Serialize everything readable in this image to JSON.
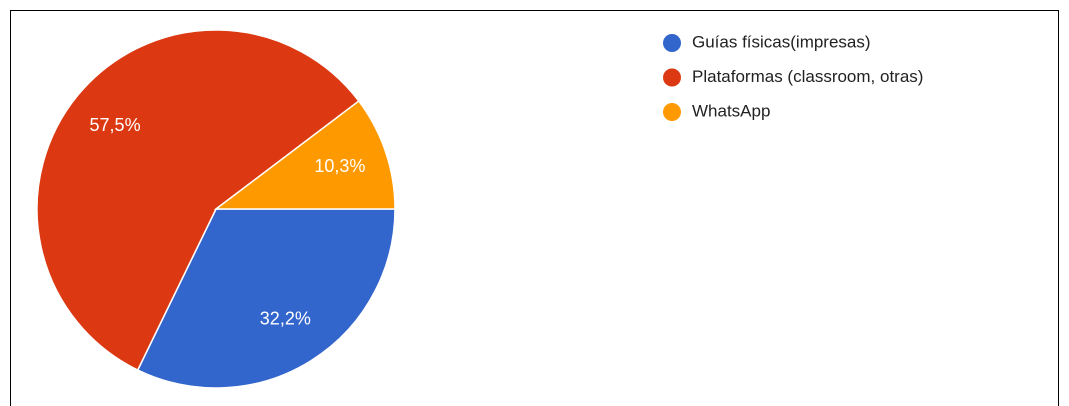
{
  "chart_data": {
    "type": "pie",
    "categories": [
      "Guías físicas(impresas)",
      "Plataformas (classroom, otras)",
      "WhatsApp"
    ],
    "values": [
      32.2,
      57.5,
      10.3
    ],
    "value_labels": [
      "32,2%",
      "57,5%",
      "10,3%"
    ],
    "colors": [
      "#3366cc",
      "#dc3912",
      "#ff9900"
    ],
    "legend": "right"
  }
}
